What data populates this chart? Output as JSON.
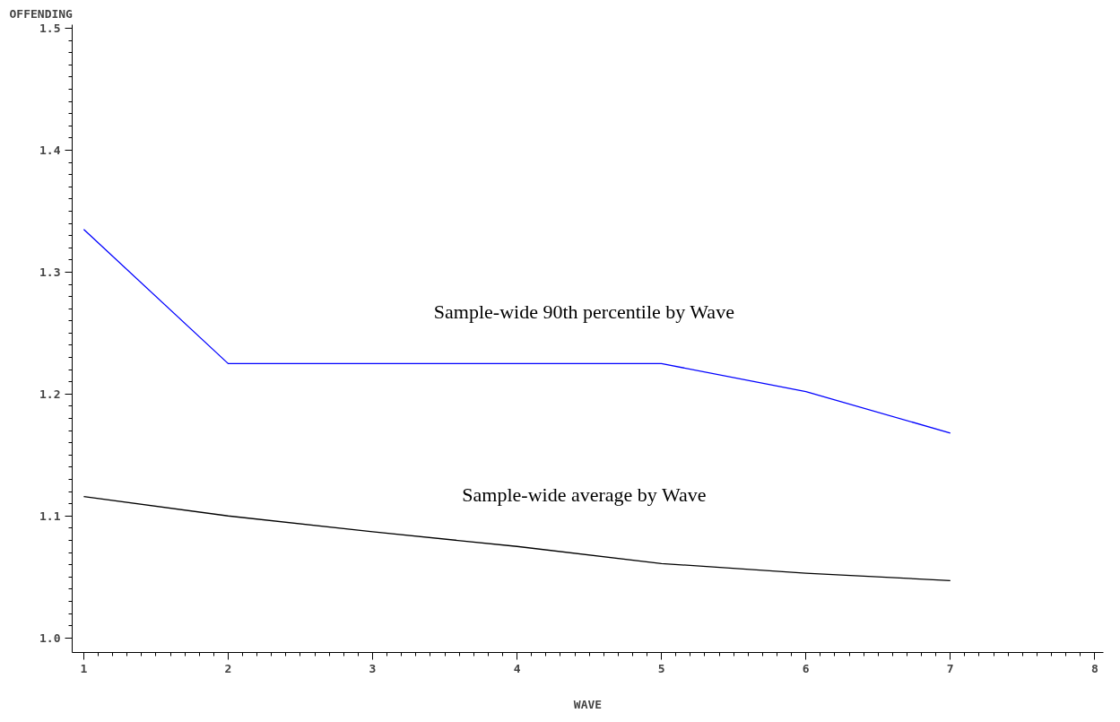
{
  "chart_data": {
    "type": "line",
    "ylabel": "OFFENDING",
    "xlabel": "WAVE",
    "x": [
      1,
      2,
      3,
      4,
      5,
      6,
      7
    ],
    "series": [
      {
        "name": "Sample-wide 90th percentile by Wave",
        "color": "#0000ff",
        "values": [
          1.335,
          1.225,
          1.225,
          1.225,
          1.225,
          1.202,
          1.168
        ]
      },
      {
        "name": "Sample-wide average by Wave",
        "color": "#000000",
        "values": [
          1.116,
          1.1,
          1.087,
          1.075,
          1.061,
          1.053,
          1.047
        ]
      }
    ],
    "xlim": [
      0.92,
      8.06
    ],
    "ylim": [
      0.988,
      1.503
    ],
    "xticks": [
      1,
      2,
      3,
      4,
      5,
      6,
      7,
      8
    ],
    "yticks": [
      {
        "value": 1.0,
        "label": "1.0"
      },
      {
        "value": 1.1,
        "label": "1.1"
      },
      {
        "value": 1.2,
        "label": "1.2"
      },
      {
        "value": 1.3,
        "label": "1.3"
      },
      {
        "value": 1.4,
        "label": "1.4"
      },
      {
        "value": 1.5,
        "label": "1.5"
      }
    ],
    "grid": false,
    "legend": false,
    "marker": "none",
    "line_style": "solid"
  }
}
